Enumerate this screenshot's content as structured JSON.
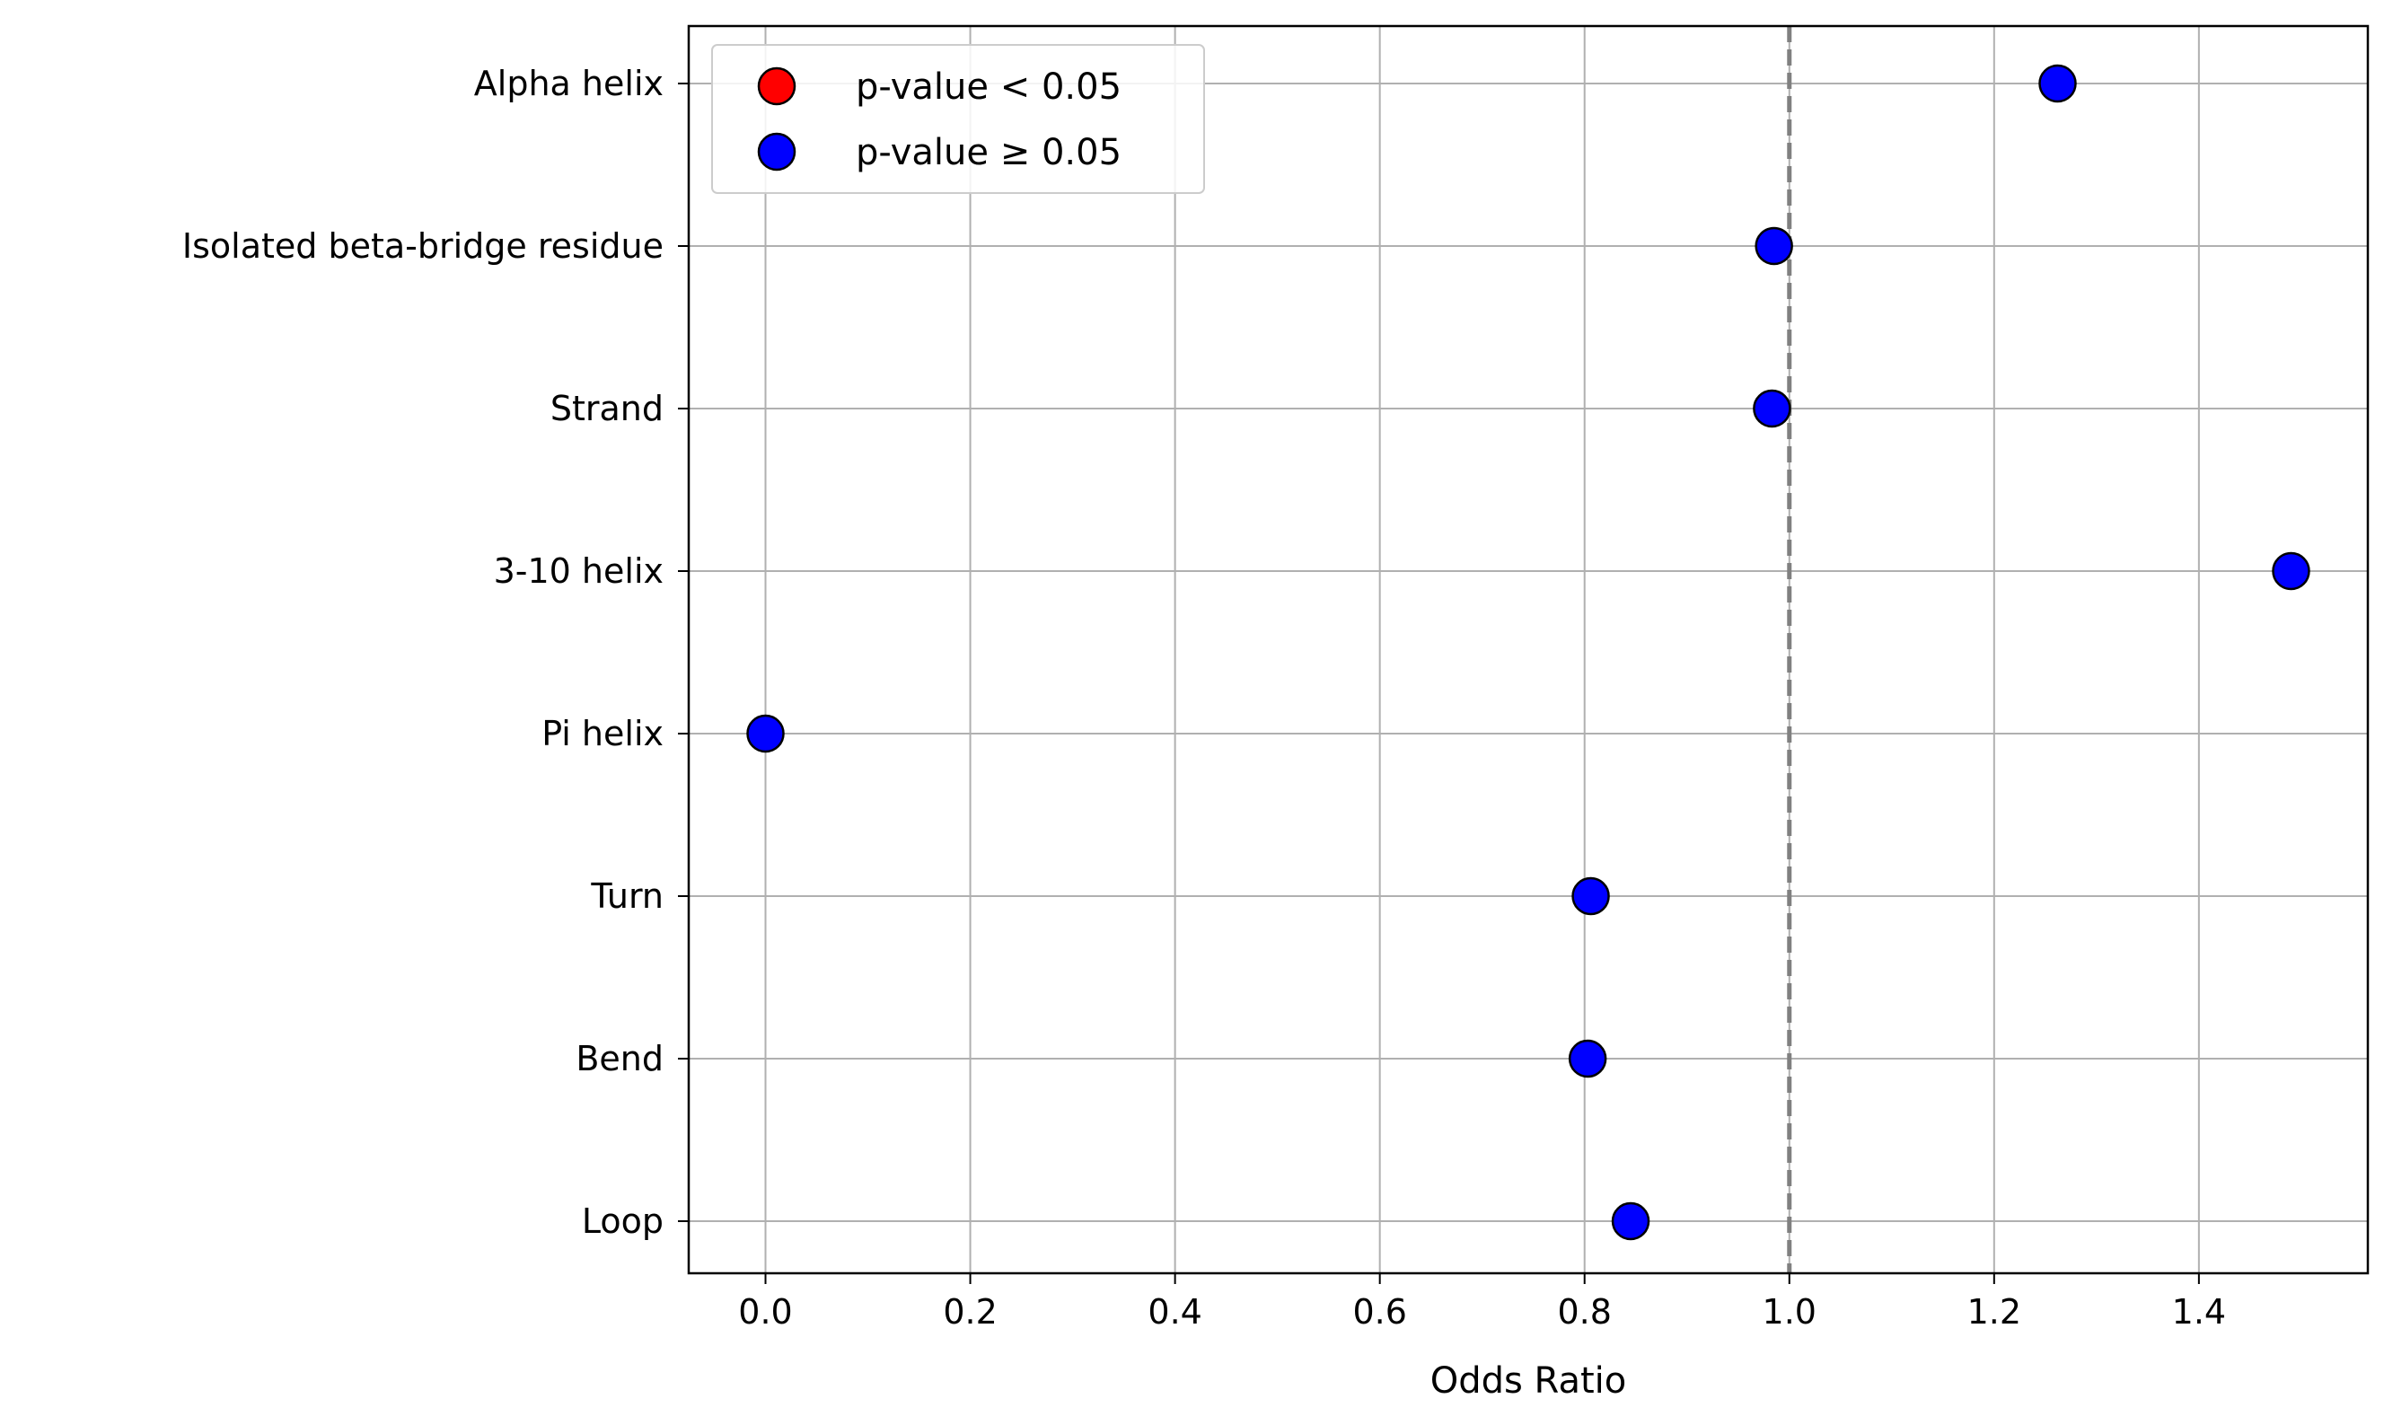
{
  "chart_data": {
    "type": "scatter",
    "title": "",
    "xlabel": "Odds Ratio",
    "ylabel": "",
    "xlim": [
      -0.075,
      1.565
    ],
    "xticks": [
      "0.0",
      "0.2",
      "0.4",
      "0.6",
      "0.8",
      "1.0",
      "1.2",
      "1.4"
    ],
    "xtick_values": [
      0.0,
      0.2,
      0.4,
      0.6,
      0.8,
      1.0,
      1.2,
      1.4
    ],
    "grid": true,
    "reference_line": {
      "x": 1.0,
      "style": "dashed",
      "color": "#808080"
    },
    "categories": [
      "Alpha helix",
      "Isolated beta-bridge residue",
      "Strand",
      "3-10 helix",
      "Pi helix",
      "Turn",
      "Bend",
      "Loop"
    ],
    "values": [
      1.262,
      0.985,
      0.983,
      1.49,
      0.0,
      0.806,
      0.803,
      0.845
    ],
    "significant": [
      false,
      false,
      false,
      false,
      false,
      false,
      false,
      false
    ],
    "legend_position": "top-left",
    "legend": [
      {
        "label": "p-value < 0.05",
        "color": "#ff0000"
      },
      {
        "label": "p-value ≥ 0.05",
        "color": "#0000ff"
      }
    ],
    "colors": {
      "significant": "#ff0000",
      "not_significant": "#0000ff",
      "grid": "#b0b0b0",
      "edge": "#000000"
    }
  }
}
